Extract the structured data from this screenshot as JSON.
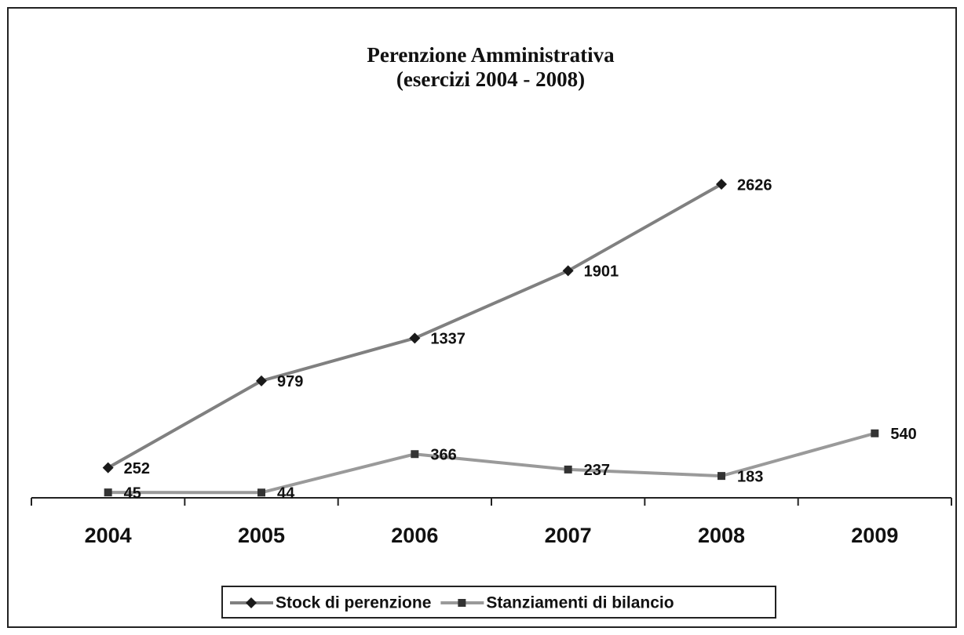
{
  "chart_data": {
    "type": "line",
    "title": "Perenzione Amministrativa",
    "subtitle": "(esercizi 2004 - 2008)",
    "categories": [
      "2004",
      "2005",
      "2006",
      "2007",
      "2008",
      "2009"
    ],
    "series": [
      {
        "name": "Stock di perenzione",
        "color": "#808080",
        "marker": "diamond",
        "values": [
          252,
          979,
          1337,
          1901,
          2626,
          null
        ]
      },
      {
        "name": "Stanziamenti di bilancio",
        "color": "#9a9a9a",
        "marker": "square",
        "values": [
          45,
          44,
          366,
          237,
          183,
          540
        ]
      }
    ],
    "legend": "bottom"
  }
}
